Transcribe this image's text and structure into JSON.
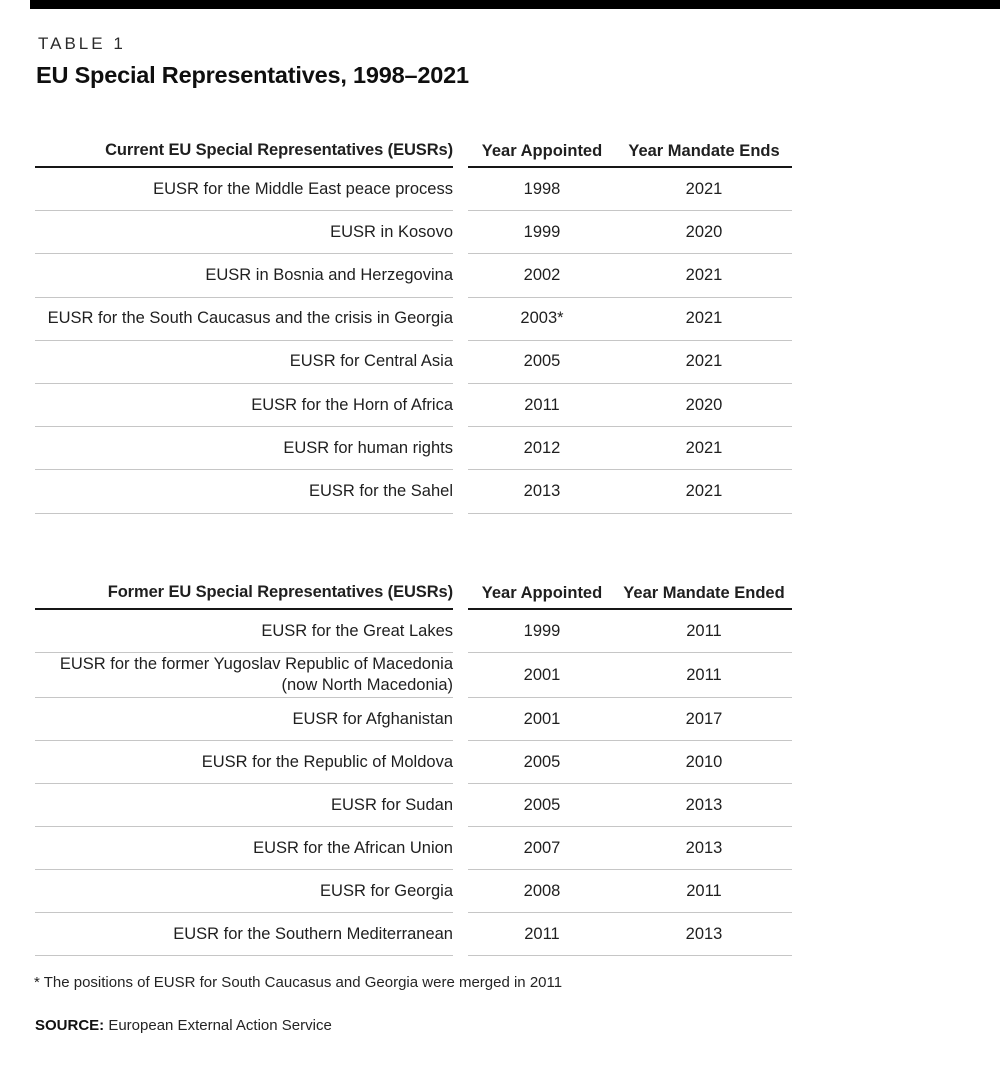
{
  "page": {
    "table_label": "TABLE 1",
    "title": "EU Special Representatives, 1998–2021",
    "footnote": "* The positions of EUSR for South Caucasus and Georgia were merged in 2011",
    "source_label": "SOURCE:",
    "source_text": " European External Action Service"
  },
  "colors": {
    "top_bar": "#000000",
    "text": "#1f1f1f",
    "header_rule": "#161616",
    "row_rule": "#c6c6c6"
  },
  "current_table": {
    "headers": [
      "Current EU Special Representatives (EUSRs)",
      "Year Appointed",
      "Year Mandate Ends"
    ],
    "rows": [
      [
        "EUSR for the Middle East peace process",
        "1998",
        "2021"
      ],
      [
        "EUSR in Kosovo",
        "1999",
        "2020"
      ],
      [
        "EUSR in Bosnia and Herzegovina",
        "2002",
        "2021"
      ],
      [
        "EUSR for the South Caucasus and the crisis in Georgia",
        "2003*",
        "2021"
      ],
      [
        "EUSR for Central Asia",
        "2005",
        "2021"
      ],
      [
        "EUSR for the Horn of Africa",
        "2011",
        "2020"
      ],
      [
        "EUSR for human rights",
        "2012",
        "2021"
      ],
      [
        "EUSR for the Sahel",
        "2013",
        "2021"
      ]
    ]
  },
  "former_table": {
    "headers": [
      "Former EU Special Representatives (EUSRs)",
      "Year Appointed",
      "Year Mandate Ended"
    ],
    "rows": [
      [
        "EUSR for the Great Lakes",
        "1999",
        "2011"
      ],
      [
        "EUSR for the former Yugoslav Republic of Macedonia (now North Macedonia)",
        "2001",
        "2011"
      ],
      [
        "EUSR for Afghanistan",
        "2001",
        "2017"
      ],
      [
        "EUSR for the Republic of Moldova",
        "2005",
        "2010"
      ],
      [
        "EUSR for Sudan",
        "2005",
        "2013"
      ],
      [
        "EUSR for the African Union",
        "2007",
        "2013"
      ],
      [
        "EUSR for Georgia",
        "2008",
        "2011"
      ],
      [
        "EUSR for the Southern Mediterranean",
        "2011",
        "2013"
      ]
    ]
  }
}
